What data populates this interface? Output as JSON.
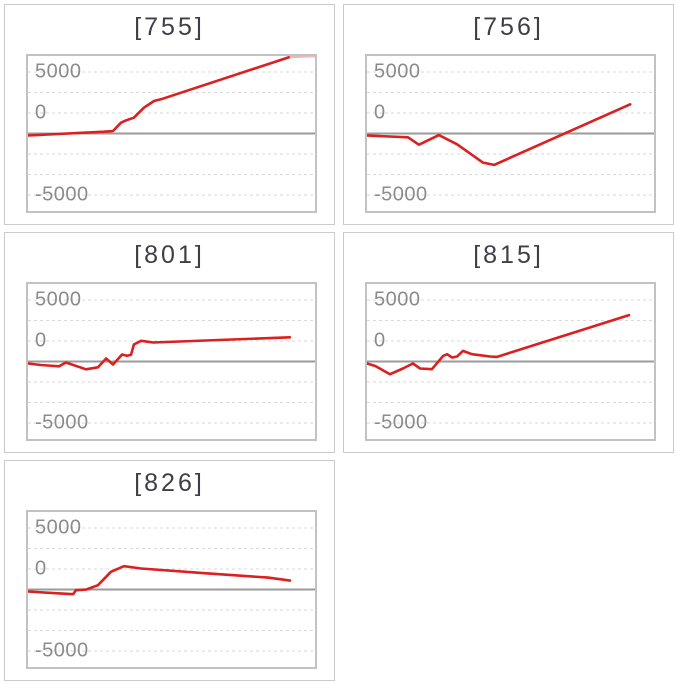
{
  "page": {
    "background": "#ffffff"
  },
  "colors": {
    "line_red": "#da2020",
    "line_red_clipped": "#edb7ba",
    "zero_line": "#9b9b9b",
    "gridline": "#d9d9d9",
    "plot_border": "#c2c2c2",
    "panel_border": "#cbcbcb",
    "title_text": "#3e3e47",
    "tick_text": "#8b8b8b"
  },
  "y_axis": {
    "tick_labels": [
      "5000",
      "0",
      "-5000"
    ],
    "gridline_interval": 2500,
    "zero_line_style": "solid",
    "gridline_style": "dashed"
  },
  "chart_data": [
    {
      "type": "line",
      "title": "[755]",
      "machine_id": "755",
      "y_ticks": [
        "5000",
        "0",
        "-5000"
      ],
      "ylim": [
        -9200,
        9700
      ],
      "grid": true,
      "points": [
        [
          0,
          0
        ],
        [
          0.265,
          460
        ],
        [
          0.296,
          550
        ],
        [
          0.324,
          1560
        ],
        [
          0.342,
          1850
        ],
        [
          0.369,
          2170
        ],
        [
          0.404,
          3390
        ],
        [
          0.439,
          4210
        ],
        [
          0.463,
          4420
        ],
        [
          0.916,
          9620
        ]
      ],
      "overflow_tail": {
        "points": [
          [
            0.916,
            9580
          ],
          [
            1.0,
            9700
          ]
        ]
      }
    },
    {
      "type": "line",
      "title": "[756]",
      "machine_id": "756",
      "y_ticks": [
        "5000",
        "0",
        "-5000"
      ],
      "ylim": [
        -9200,
        9700
      ],
      "grid": true,
      "points": [
        [
          0,
          0
        ],
        [
          0.143,
          -220
        ],
        [
          0.181,
          -1120
        ],
        [
          0.251,
          50
        ],
        [
          0.314,
          -1070
        ],
        [
          0.404,
          -3310
        ],
        [
          0.443,
          -3590
        ],
        [
          0.917,
          3800
        ]
      ]
    },
    {
      "type": "line",
      "title": "[801]",
      "machine_id": "801",
      "y_ticks": [
        "5000",
        "0",
        "-5000"
      ],
      "ylim": [
        -9200,
        9700
      ],
      "grid": true,
      "points": [
        [
          0,
          0
        ],
        [
          0.045,
          -180
        ],
        [
          0.108,
          -340
        ],
        [
          0.132,
          120
        ],
        [
          0.202,
          -710
        ],
        [
          0.244,
          -460
        ],
        [
          0.272,
          610
        ],
        [
          0.296,
          -120
        ],
        [
          0.328,
          1100
        ],
        [
          0.345,
          940
        ],
        [
          0.359,
          1060
        ],
        [
          0.369,
          2320
        ],
        [
          0.394,
          2770
        ],
        [
          0.436,
          2560
        ],
        [
          0.913,
          3200
        ]
      ]
    },
    {
      "type": "line",
      "title": "[815]",
      "machine_id": "815",
      "y_ticks": [
        "5000",
        "0",
        "-5000"
      ],
      "ylim": [
        -9200,
        9700
      ],
      "grid": true,
      "points": [
        [
          0,
          0
        ],
        [
          0.028,
          -290
        ],
        [
          0.08,
          -1300
        ],
        [
          0.125,
          -610
        ],
        [
          0.16,
          0
        ],
        [
          0.185,
          -610
        ],
        [
          0.226,
          -700
        ],
        [
          0.265,
          930
        ],
        [
          0.279,
          1130
        ],
        [
          0.296,
          730
        ],
        [
          0.314,
          850
        ],
        [
          0.334,
          1540
        ],
        [
          0.366,
          1130
        ],
        [
          0.429,
          850
        ],
        [
          0.453,
          800
        ],
        [
          0.913,
          5900
        ]
      ]
    },
    {
      "type": "line",
      "title": "[826]",
      "machine_id": "826",
      "y_ticks": [
        "5000",
        "0",
        "-5000"
      ],
      "ylim": [
        -9200,
        9700
      ],
      "grid": true,
      "points": [
        [
          0,
          0
        ],
        [
          0.08,
          -170
        ],
        [
          0.157,
          -330
        ],
        [
          0.167,
          160
        ],
        [
          0.202,
          230
        ],
        [
          0.244,
          770
        ],
        [
          0.289,
          2400
        ],
        [
          0.334,
          3090
        ],
        [
          0.394,
          2800
        ],
        [
          0.603,
          2270
        ],
        [
          0.836,
          1700
        ],
        [
          0.913,
          1330
        ]
      ]
    }
  ]
}
